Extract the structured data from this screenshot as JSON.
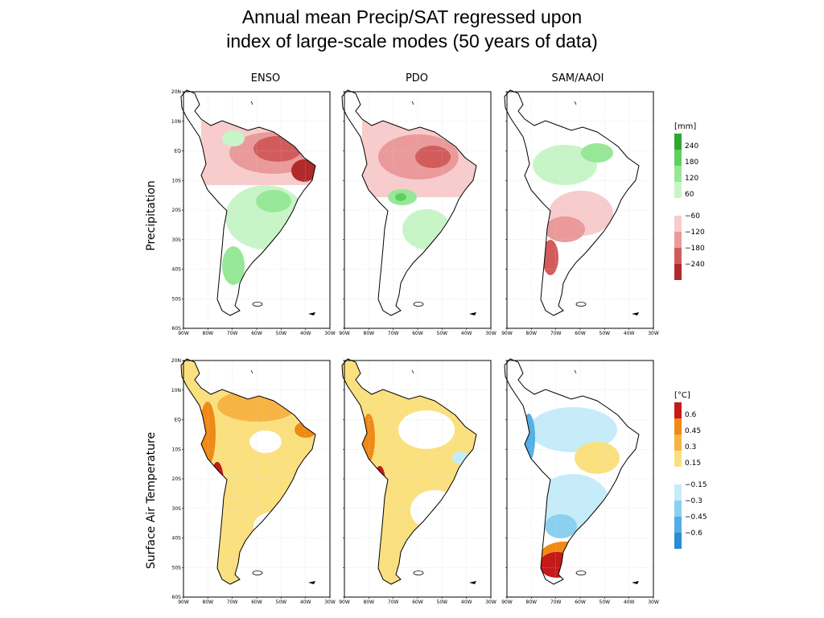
{
  "title": {
    "line1": "Annual mean Precip/SAT regressed upon",
    "line2": "index of large-scale modes (50 years of data)"
  },
  "columns": [
    {
      "label": "ENSO"
    },
    {
      "label": "PDO"
    },
    {
      "label": "SAM/AAOI"
    }
  ],
  "rows": [
    {
      "label": "Precipitation"
    },
    {
      "label": "Surface Air Temperature"
    }
  ],
  "axes": {
    "lat_ticks": [
      "20N",
      "10N",
      "EQ",
      "10S",
      "20S",
      "30S",
      "40S",
      "50S",
      "60S"
    ],
    "lon_ticks": [
      "90W",
      "80W",
      "70W",
      "60W",
      "50W",
      "40W",
      "30W"
    ]
  },
  "colorbars": {
    "precip": {
      "unit": "[mm]",
      "positive": [
        {
          "label": "240",
          "color": "#2ea82e"
        },
        {
          "label": "180",
          "color": "#5fd05f"
        },
        {
          "label": "120",
          "color": "#96e896"
        },
        {
          "label": "60",
          "color": "#c8f5c8"
        }
      ],
      "negative": [
        {
          "label": "−60",
          "color": "#f8cccc"
        },
        {
          "label": "−120",
          "color": "#ea9a9a"
        },
        {
          "label": "−180",
          "color": "#d25c5c"
        },
        {
          "label": "−240",
          "color": "#b02a2a"
        }
      ]
    },
    "sat": {
      "unit": "[°C]",
      "positive": [
        {
          "label": "0.6",
          "color": "#c41a1a"
        },
        {
          "label": "0.45",
          "color": "#f08a16"
        },
        {
          "label": "0.3",
          "color": "#f7b445"
        },
        {
          "label": "0.15",
          "color": "#fbe080"
        }
      ],
      "negative": [
        {
          "label": "−0.15",
          "color": "#c6ecfa"
        },
        {
          "label": "−0.3",
          "color": "#8cd0f0"
        },
        {
          "label": "−0.45",
          "color": "#52aee4"
        },
        {
          "label": "−0.6",
          "color": "#2a8cd2"
        }
      ]
    }
  }
}
